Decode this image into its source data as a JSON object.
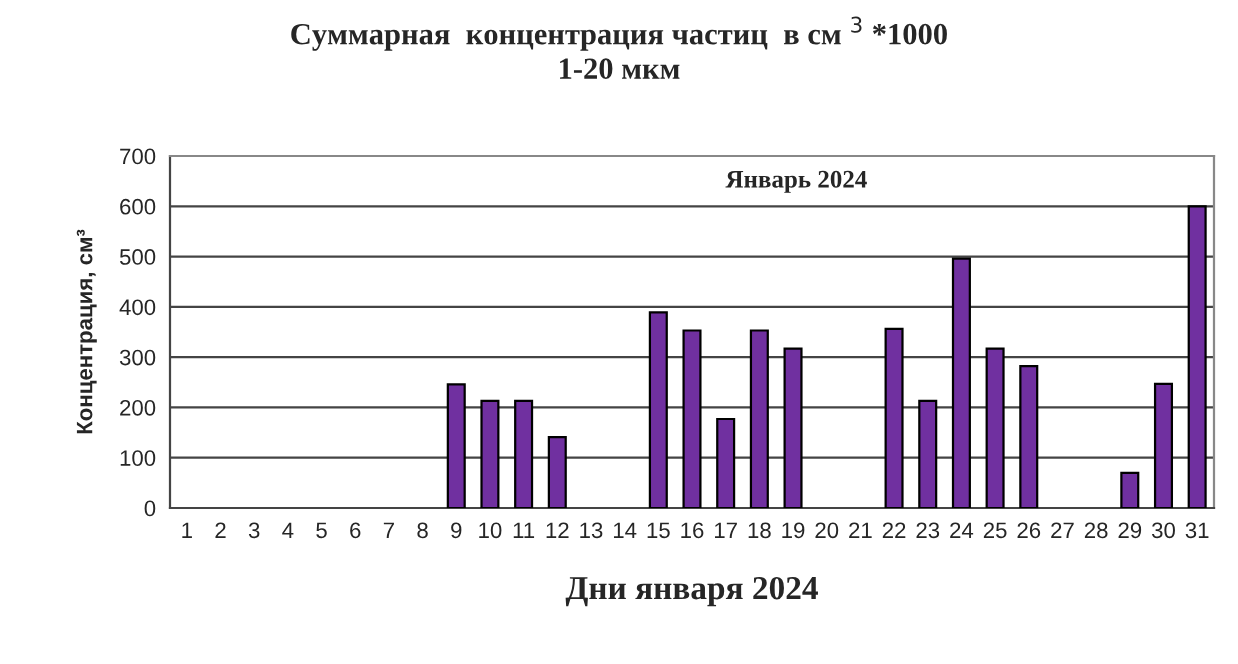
{
  "chart_data": {
    "type": "bar",
    "title": "Суммарная  концентрация частиц  в см $^{3}$ *1000\n1-20 мкм",
    "xlabel": "Дни января 2024",
    "ylabel": "Концентрация, см³",
    "annotations": [
      "Январь 2024"
    ],
    "categories": [
      "1",
      "2",
      "3",
      "4",
      "5",
      "6",
      "7",
      "8",
      "9",
      "10",
      "11",
      "12",
      "13",
      "14",
      "15",
      "16",
      "17",
      "18",
      "19",
      "20",
      "21",
      "22",
      "23",
      "24",
      "25",
      "26",
      "27",
      "28",
      "29",
      "30",
      "31"
    ],
    "values": [
      null,
      null,
      null,
      null,
      null,
      null,
      null,
      null,
      246,
      213,
      213,
      141,
      null,
      null,
      389,
      353,
      177,
      353,
      317,
      null,
      null,
      356,
      213,
      496,
      317,
      282,
      null,
      null,
      70,
      247,
      600
    ],
    "color": "#7030a0",
    "ylim": [
      0,
      700
    ],
    "yticks": [
      0,
      100,
      200,
      300,
      400,
      500,
      600,
      700
    ],
    "grid": "y"
  }
}
